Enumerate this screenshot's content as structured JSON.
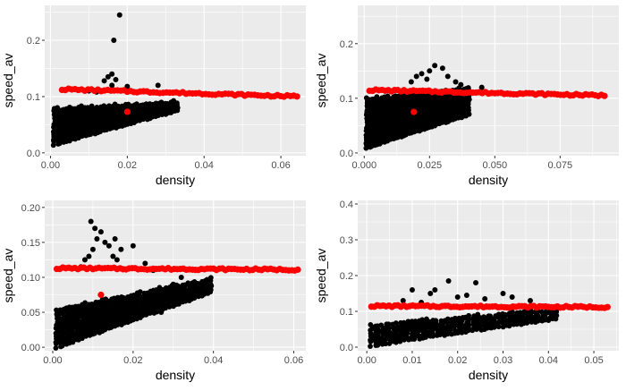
{
  "chart_data": [
    {
      "type": "scatter",
      "xlabel": "density",
      "ylabel": "speed_av",
      "xlim": [
        -0.0015,
        0.0665
      ],
      "ylim": [
        -0.005,
        0.262
      ],
      "xticks": [
        0,
        0.02,
        0.04,
        0.06
      ],
      "xtick_labels": [
        "0.00",
        "0.02",
        "0.04",
        "0.06"
      ],
      "yticks": [
        0,
        0.1,
        0.2
      ],
      "ytick_labels": [
        "0.0",
        "0.1",
        "0.2"
      ],
      "grid": true,
      "series": [
        {
          "color": "#000000",
          "cloud": {
            "x_start": 0.001,
            "x_end": 0.033,
            "step": 0.0008,
            "ymin_start": 0.015,
            "ymin_end": 0.075,
            "ymax_start": 0.08,
            "ymax_end": 0.092,
            "ystep": 0.0045
          },
          "points": [
            [
              0.014,
              0.128
            ],
            [
              0.015,
              0.135
            ],
            [
              0.016,
              0.14
            ],
            [
              0.017,
              0.13
            ],
            [
              0.016,
              0.12
            ],
            [
              0.018,
              0.245
            ],
            [
              0.0165,
              0.2
            ],
            [
              0.02,
              0.118
            ],
            [
              0.028,
              0.12
            ],
            [
              0.009,
              0.11
            ],
            [
              0.01,
              0.11
            ],
            [
              0.012,
              0.108
            ]
          ]
        },
        {
          "color": "#ff0000",
          "band": {
            "x_start": 0.003,
            "x_end": 0.065,
            "step": 0.00085,
            "y_start": 0.113,
            "y_end": 0.1
          },
          "points": [
            [
              0.02,
              0.073
            ]
          ]
        }
      ]
    },
    {
      "type": "scatter",
      "xlabel": "density",
      "ylabel": "speed_av",
      "xlim": [
        -0.0025,
        0.0975
      ],
      "ylim": [
        -0.005,
        0.27
      ],
      "xticks": [
        0,
        0.025,
        0.05,
        0.075
      ],
      "xtick_labels": [
        "0.000",
        "0.025",
        "0.050",
        "0.075"
      ],
      "yticks": [
        0,
        0.1,
        0.2
      ],
      "ytick_labels": [
        "0.0",
        "0.1",
        "0.2"
      ],
      "grid": true,
      "series": [
        {
          "color": "#000000",
          "cloud": {
            "x_start": 0.001,
            "x_end": 0.04,
            "step": 0.001,
            "ymin_start": 0.01,
            "ymin_end": 0.07,
            "ymax_start": 0.1,
            "ymax_end": 0.12,
            "ystep": 0.0045
          },
          "points": [
            [
              0.02,
              0.14
            ],
            [
              0.022,
              0.145
            ],
            [
              0.025,
              0.15
            ],
            [
              0.027,
              0.16
            ],
            [
              0.03,
              0.155
            ],
            [
              0.032,
              0.14
            ],
            [
              0.024,
              0.135
            ],
            [
              0.035,
              0.13
            ],
            [
              0.037,
              0.125
            ],
            [
              0.045,
              0.12
            ],
            [
              0.018,
              0.13
            ]
          ]
        },
        {
          "color": "#ff0000",
          "band": {
            "x_start": 0.002,
            "x_end": 0.093,
            "step": 0.0012,
            "y_start": 0.115,
            "y_end": 0.105
          },
          "points": [
            [
              0.019,
              0.075
            ]
          ]
        }
      ]
    },
    {
      "type": "scatter",
      "xlabel": "density",
      "ylabel": "speed_av",
      "xlim": [
        -0.002,
        0.063
      ],
      "ylim": [
        -0.005,
        0.21
      ],
      "xticks": [
        0,
        0.02,
        0.04,
        0.06
      ],
      "xtick_labels": [
        "0.00",
        "0.02",
        "0.04",
        "0.06"
      ],
      "yticks": [
        0,
        0.05,
        0.1,
        0.15,
        0.2
      ],
      "ytick_labels": [
        "0.00",
        "0.05",
        "0.10",
        "0.15",
        "0.20"
      ],
      "grid": true,
      "series": [
        {
          "color": "#000000",
          "cloud": {
            "x_start": 0.001,
            "x_end": 0.04,
            "step": 0.0008,
            "ymin_start": 0.0,
            "ymin_end": 0.08,
            "ymax_start": 0.055,
            "ymax_end": 0.1,
            "ystep": 0.004
          },
          "points": [
            [
              0.0095,
              0.18
            ],
            [
              0.0105,
              0.17
            ],
            [
              0.011,
              0.155
            ],
            [
              0.012,
              0.165
            ],
            [
              0.013,
              0.15
            ],
            [
              0.01,
              0.14
            ],
            [
              0.015,
              0.13
            ],
            [
              0.016,
              0.125
            ],
            [
              0.017,
              0.14
            ],
            [
              0.0155,
              0.155
            ],
            [
              0.02,
              0.145
            ],
            [
              0.009,
              0.13
            ],
            [
              0.008,
              0.125
            ],
            [
              0.014,
              0.145
            ],
            [
              0.007,
              0.115
            ],
            [
              0.022,
              0.06
            ],
            [
              0.026,
              0.055
            ],
            [
              0.027,
              0.05
            ],
            [
              0.03,
              0.09
            ],
            [
              0.032,
              0.1
            ],
            [
              0.025,
              0.11
            ],
            [
              0.023,
              0.12
            ],
            [
              0.018,
              0.065
            ],
            [
              0.016,
              0.05
            ],
            [
              0.009,
              0.035
            ],
            [
              0.012,
              0.03
            ],
            [
              0.0105,
              0.025
            ],
            [
              0.008,
              0.02
            ],
            [
              0.006,
              0.03
            ]
          ]
        },
        {
          "color": "#ff0000",
          "band": {
            "x_start": 0.001,
            "x_end": 0.061,
            "step": 0.00075,
            "y_start": 0.113,
            "y_end": 0.111
          },
          "points": [
            [
              0.012,
              0.075
            ]
          ]
        }
      ]
    },
    {
      "type": "scatter",
      "xlabel": "density",
      "ylabel": "speed_av",
      "xlim": [
        -0.002,
        0.0555
      ],
      "ylim": [
        -0.01,
        0.41
      ],
      "xticks": [
        0,
        0.01,
        0.02,
        0.03,
        0.04,
        0.05
      ],
      "xtick_labels": [
        "0.00",
        "0.01",
        "0.02",
        "0.03",
        "0.04",
        "0.05"
      ],
      "yticks": [
        0,
        0.1,
        0.2,
        0.3,
        0.4
      ],
      "ytick_labels": [
        "0.0",
        "0.1",
        "0.2",
        "0.3",
        "0.4"
      ],
      "grid": true,
      "series": [
        {
          "color": "#000000",
          "cloud": {
            "x_start": 0.001,
            "x_end": 0.042,
            "step": 0.0008,
            "ymin_start": 0.005,
            "ymin_end": 0.08,
            "ymax_start": 0.065,
            "ymax_end": 0.11,
            "ystep": 0.0085
          },
          "points": [
            [
              0.018,
              0.185
            ],
            [
              0.024,
              0.18
            ],
            [
              0.01,
              0.16
            ],
            [
              0.014,
              0.15
            ],
            [
              0.015,
              0.16
            ],
            [
              0.02,
              0.14
            ],
            [
              0.022,
              0.145
            ],
            [
              0.03,
              0.15
            ],
            [
              0.032,
              0.14
            ],
            [
              0.036,
              0.13
            ],
            [
              0.026,
              0.135
            ],
            [
              0.008,
              0.13
            ],
            [
              0.012,
              0.125
            ]
          ]
        },
        {
          "color": "#ff0000",
          "band": {
            "x_start": 0.001,
            "x_end": 0.053,
            "step": 0.00065,
            "y_start": 0.115,
            "y_end": 0.112
          },
          "points": []
        }
      ]
    }
  ]
}
